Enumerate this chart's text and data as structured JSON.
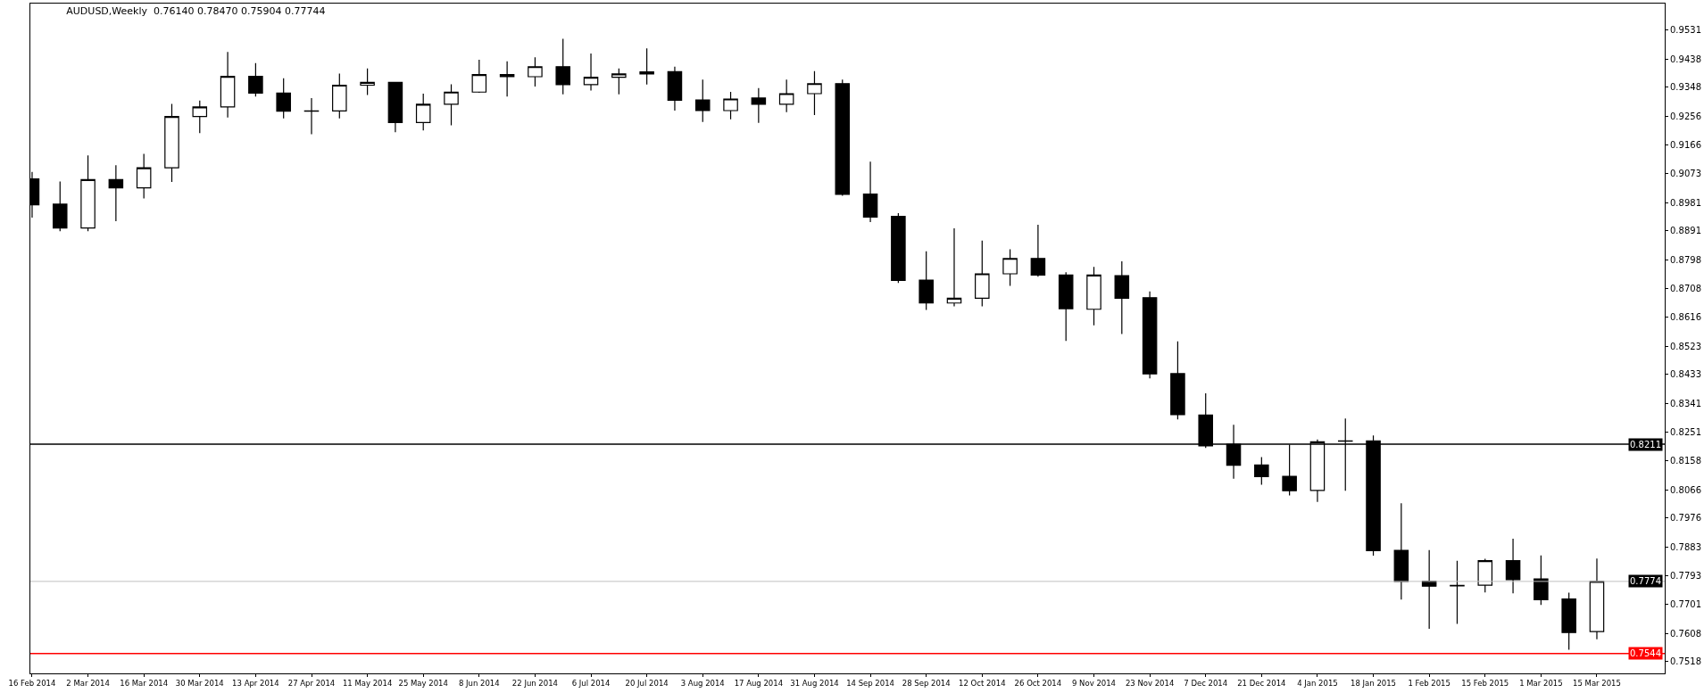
{
  "chart_data": {
    "type": "candlestick",
    "title": "AUDUSD,Weekly  0.76140 0.78470 0.75904 0.77744",
    "x": [
      "2014-02-16",
      "2014-02-23",
      "2014-03-02",
      "2014-03-09",
      "2014-03-16",
      "2014-03-23",
      "2014-03-30",
      "2014-04-06",
      "2014-04-13",
      "2014-04-20",
      "2014-04-27",
      "2014-05-04",
      "2014-05-11",
      "2014-05-18",
      "2014-05-25",
      "2014-06-01",
      "2014-06-08",
      "2014-06-15",
      "2014-06-22",
      "2014-06-29",
      "2014-07-06",
      "2014-07-13",
      "2014-07-20",
      "2014-07-27",
      "2014-08-03",
      "2014-08-10",
      "2014-08-17",
      "2014-08-24",
      "2014-08-31",
      "2014-09-07",
      "2014-09-14",
      "2014-09-21",
      "2014-09-28",
      "2014-10-05",
      "2014-10-12",
      "2014-10-19",
      "2014-10-26",
      "2014-11-02",
      "2014-11-09",
      "2014-11-16",
      "2014-11-23",
      "2014-11-30",
      "2014-12-07",
      "2014-12-14",
      "2014-12-21",
      "2014-12-28",
      "2015-01-04",
      "2015-01-11",
      "2015-01-18",
      "2015-01-25",
      "2015-02-01",
      "2015-02-08",
      "2015-02-15",
      "2015-02-22",
      "2015-03-01",
      "2015-03-08",
      "2015-03-15"
    ],
    "ohlc": [
      [
        0.9056,
        0.9079,
        0.8933,
        0.8974
      ],
      [
        0.8976,
        0.9048,
        0.889,
        0.89
      ],
      [
        0.89,
        0.9131,
        0.889,
        0.9054
      ],
      [
        0.9054,
        0.91,
        0.8922,
        0.9028
      ],
      [
        0.9028,
        0.9136,
        0.8994,
        0.9092
      ],
      [
        0.9092,
        0.9295,
        0.9047,
        0.9255
      ],
      [
        0.9255,
        0.9306,
        0.9202,
        0.9286
      ],
      [
        0.9286,
        0.9461,
        0.9252,
        0.9383
      ],
      [
        0.9383,
        0.9425,
        0.9319,
        0.933
      ],
      [
        0.933,
        0.9377,
        0.9249,
        0.9272
      ],
      [
        0.9272,
        0.9314,
        0.9199,
        0.9273
      ],
      [
        0.9273,
        0.9392,
        0.9249,
        0.9355
      ],
      [
        0.9355,
        0.9408,
        0.9324,
        0.9364
      ],
      [
        0.9364,
        0.9366,
        0.9205,
        0.9236
      ],
      [
        0.9236,
        0.9328,
        0.9211,
        0.9294
      ],
      [
        0.9294,
        0.9358,
        0.9227,
        0.9333
      ],
      [
        0.9333,
        0.9436,
        0.9331,
        0.9389
      ],
      [
        0.9389,
        0.9431,
        0.9319,
        0.9382
      ],
      [
        0.9382,
        0.9444,
        0.9351,
        0.9414
      ],
      [
        0.9414,
        0.9503,
        0.9326,
        0.9357
      ],
      [
        0.9357,
        0.9456,
        0.9338,
        0.938
      ],
      [
        0.938,
        0.9408,
        0.9326,
        0.9391
      ],
      [
        0.9391,
        0.9472,
        0.9357,
        0.9397
      ],
      [
        0.9398,
        0.9414,
        0.9274,
        0.9307
      ],
      [
        0.9308,
        0.9373,
        0.9238,
        0.9274
      ],
      [
        0.9274,
        0.9334,
        0.9246,
        0.9311
      ],
      [
        0.9314,
        0.9346,
        0.9235,
        0.9294
      ],
      [
        0.9294,
        0.9373,
        0.9269,
        0.9328
      ],
      [
        0.9328,
        0.94,
        0.926,
        0.936
      ],
      [
        0.936,
        0.9373,
        0.9003,
        0.9007
      ],
      [
        0.9008,
        0.9111,
        0.8919,
        0.8935
      ],
      [
        0.8937,
        0.8947,
        0.8725,
        0.8733
      ],
      [
        0.8734,
        0.8826,
        0.8639,
        0.8661
      ],
      [
        0.8661,
        0.8899,
        0.865,
        0.8676
      ],
      [
        0.8676,
        0.886,
        0.865,
        0.8754
      ],
      [
        0.8754,
        0.8832,
        0.8716,
        0.8803
      ],
      [
        0.8803,
        0.891,
        0.8745,
        0.875
      ],
      [
        0.875,
        0.8759,
        0.854,
        0.8643
      ],
      [
        0.8641,
        0.8776,
        0.859,
        0.875
      ],
      [
        0.8748,
        0.8794,
        0.8562,
        0.8676
      ],
      [
        0.8678,
        0.8698,
        0.8421,
        0.8435
      ],
      [
        0.8436,
        0.8539,
        0.829,
        0.8305
      ],
      [
        0.8304,
        0.8373,
        0.8199,
        0.8206
      ],
      [
        0.8211,
        0.8273,
        0.8101,
        0.8144
      ],
      [
        0.8145,
        0.817,
        0.8082,
        0.8108
      ],
      [
        0.8109,
        0.821,
        0.8048,
        0.8063
      ],
      [
        0.8064,
        0.8226,
        0.8027,
        0.8219
      ],
      [
        0.8221,
        0.8293,
        0.8063,
        0.8222
      ],
      [
        0.8222,
        0.8239,
        0.7856,
        0.7872
      ],
      [
        0.7873,
        0.8023,
        0.7716,
        0.7774
      ],
      [
        0.7775,
        0.7874,
        0.7623,
        0.7759
      ],
      [
        0.7761,
        0.784,
        0.7639,
        0.776
      ],
      [
        0.7762,
        0.7846,
        0.7739,
        0.784
      ],
      [
        0.784,
        0.791,
        0.7736,
        0.778
      ],
      [
        0.7782,
        0.7857,
        0.7699,
        0.7716
      ],
      [
        0.7718,
        0.7738,
        0.7556,
        0.7611
      ],
      [
        0.7614,
        0.7847,
        0.759,
        0.7774
      ]
    ],
    "xlim": [
      "2014-02-15T13:30",
      "2015-04-01"
    ],
    "xticks": [
      {
        "value": "2014-02-16",
        "label": "16 Feb 2014"
      },
      {
        "value": "2014-03-02",
        "label": "2 Mar 2014"
      },
      {
        "value": "2014-03-16",
        "label": "16 Mar 2014"
      },
      {
        "value": "2014-03-30",
        "label": "30 Mar 2014"
      },
      {
        "value": "2014-04-13",
        "label": "13 Apr 2014"
      },
      {
        "value": "2014-04-27",
        "label": "27 Apr 2014"
      },
      {
        "value": "2014-05-11",
        "label": "11 May 2014"
      },
      {
        "value": "2014-05-25",
        "label": "25 May 2014"
      },
      {
        "value": "2014-06-08",
        "label": "8 Jun 2014"
      },
      {
        "value": "2014-06-22",
        "label": "22 Jun 2014"
      },
      {
        "value": "2014-07-06",
        "label": "6 Jul 2014"
      },
      {
        "value": "2014-07-20",
        "label": "20 Jul 2014"
      },
      {
        "value": "2014-08-03",
        "label": "3 Aug 2014"
      },
      {
        "value": "2014-08-17",
        "label": "17 Aug 2014"
      },
      {
        "value": "2014-08-31",
        "label": "31 Aug 2014"
      },
      {
        "value": "2014-09-14",
        "label": "14 Sep 2014"
      },
      {
        "value": "2014-09-28",
        "label": "28 Sep 2014"
      },
      {
        "value": "2014-10-12",
        "label": "12 Oct 2014"
      },
      {
        "value": "2014-10-26",
        "label": "26 Oct 2014"
      },
      {
        "value": "2014-11-09",
        "label": "9 Nov 2014"
      },
      {
        "value": "2014-11-23",
        "label": "23 Nov 2014"
      },
      {
        "value": "2014-12-07",
        "label": "7 Dec 2014"
      },
      {
        "value": "2014-12-21",
        "label": "21 Dec 2014"
      },
      {
        "value": "2015-01-04",
        "label": "4 Jan 2015"
      },
      {
        "value": "2015-01-18",
        "label": "18 Jan 2015"
      },
      {
        "value": "2015-02-01",
        "label": "1 Feb 2015"
      },
      {
        "value": "2015-02-15",
        "label": "15 Feb 2015"
      },
      {
        "value": "2015-03-01",
        "label": "1 Mar 2015"
      },
      {
        "value": "2015-03-15",
        "label": "15 Mar 2015"
      }
    ],
    "ylim": [
      0.7481,
      0.9615
    ],
    "yticks": [
      0.9531,
      0.9438,
      0.9348,
      0.9256,
      0.9166,
      0.9073,
      0.8981,
      0.8891,
      0.8798,
      0.8708,
      0.8616,
      0.8523,
      0.8433,
      0.8341,
      0.8251,
      0.8158,
      0.8066,
      0.7976,
      0.7883,
      0.7793,
      0.7701,
      0.7608,
      0.7518
    ],
    "ref_lines": [
      {
        "axis": "y",
        "value": 0.8211,
        "label": "0.8211",
        "color": "#000000"
      },
      {
        "axis": "y",
        "value": 0.7774,
        "label": "0.7774",
        "color": "#c0c0c0"
      },
      {
        "axis": "y",
        "value": 0.7544,
        "label": "0.7544",
        "color": "#ff0000"
      }
    ]
  }
}
